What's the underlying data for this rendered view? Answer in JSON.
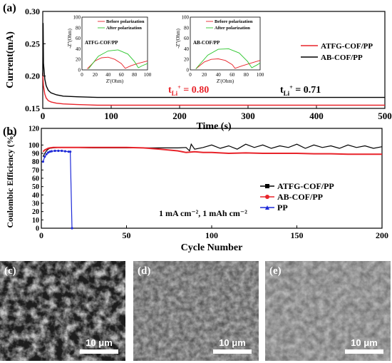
{
  "panels": {
    "a": {
      "label": "(a)",
      "ylabel": "Current(mA)",
      "xlabel": "Time (s)",
      "xticks": [
        "0",
        "100",
        "200",
        "300",
        "400",
        "500"
      ],
      "yticks": [
        "0.15",
        "0.20",
        "0.25",
        "0.30"
      ],
      "t_ATFG": "0.80",
      "t_AB": "0.71",
      "t_prefix": "t",
      "t_sub": "Li",
      "t_sup": "+",
      "legend": [
        {
          "name": "ATFG-COF/PP",
          "color": "#e8232a"
        },
        {
          "name": "AB-COF/PP",
          "color": "#000000"
        }
      ],
      "insets": [
        {
          "title": "ATFG-COF/PP",
          "ylabel": "-Z''(Ohm)",
          "xlabel": "Z'(Ohm)",
          "xticks": [
            "0",
            "20",
            "40",
            "60",
            "80",
            "100"
          ],
          "yticks": [
            "0",
            "20",
            "40",
            "60",
            "80",
            "100"
          ],
          "legend": [
            "Before polarization",
            "After polarization"
          ]
        },
        {
          "title": "AB-COF/PP",
          "ylabel": "-Z''(Ohm)",
          "xlabel": "Z'(Ohm)",
          "xticks": [
            "0",
            "20",
            "40",
            "60",
            "80",
            "100"
          ],
          "yticks": [
            "0",
            "20",
            "40",
            "60",
            "80",
            "100"
          ],
          "legend": [
            "Before polarization",
            "After polarization"
          ]
        }
      ]
    },
    "b": {
      "label": "(b)",
      "ylabel": "Coulombic Efficiency (%)",
      "xlabel": "Cycle Number",
      "xticks": [
        "0",
        "50",
        "100",
        "150",
        "200"
      ],
      "yticks": [
        "0",
        "10",
        "20",
        "30",
        "40",
        "50",
        "60",
        "70",
        "80",
        "90",
        "100",
        "120"
      ],
      "annotation": "1 mA cm⁻², 1 mAh cm⁻²",
      "legend": [
        {
          "name": "ATFG-COF/PP",
          "color": "#000000"
        },
        {
          "name": "AB-COF/PP",
          "color": "#e8232a"
        },
        {
          "name": "PP",
          "color": "#1f2bd8"
        }
      ]
    },
    "c": {
      "label": "(c)",
      "scale": "10 μm"
    },
    "d": {
      "label": "(d)",
      "scale": "10 μm"
    },
    "e": {
      "label": "(e)",
      "scale": "10 μm"
    }
  },
  "chart_data": [
    {
      "type": "line",
      "xlabel": "Time (s)",
      "ylabel": "Current(mA)",
      "xlim": [
        0,
        500
      ],
      "ylim": [
        0.15,
        0.3
      ],
      "series": [
        {
          "name": "ATFG-COF/PP",
          "color": "#e8232a",
          "x": [
            0,
            1,
            3,
            5,
            8,
            12,
            20,
            30,
            50,
            80,
            120,
            200,
            300,
            400,
            500
          ],
          "y": [
            0.205,
            0.185,
            0.172,
            0.166,
            0.162,
            0.16,
            0.158,
            0.157,
            0.156,
            0.155,
            0.155,
            0.155,
            0.155,
            0.155,
            0.155
          ]
        },
        {
          "name": "AB-COF/PP",
          "color": "#000000",
          "x": [
            0,
            0.5,
            1,
            3,
            5,
            8,
            12,
            20,
            30,
            50,
            80,
            120,
            200,
            300,
            400,
            500
          ],
          "y": [
            0.2,
            0.282,
            0.22,
            0.195,
            0.185,
            0.178,
            0.174,
            0.171,
            0.169,
            0.168,
            0.167,
            0.167,
            0.167,
            0.167,
            0.167,
            0.167
          ]
        }
      ],
      "insets": [
        {
          "title": "ATFG-COF/PP",
          "xlim": [
            0,
            100
          ],
          "ylim": [
            0,
            100
          ],
          "series": [
            {
              "name": "Before polarization",
              "color": "#e8232a",
              "x": [
                8,
                20,
                30,
                40,
                50,
                60,
                66,
                75,
                85,
                100
              ],
              "y": [
                2,
                17,
                23,
                24,
                20,
                12,
                3,
                8,
                12,
                17
              ]
            },
            {
              "name": "After polarization",
              "color": "#2bc52b",
              "x": [
                10,
                25,
                40,
                55,
                70,
                80,
                86,
                92,
                100
              ],
              "y": [
                2,
                26,
                36,
                38,
                30,
                16,
                4,
                8,
                12
              ]
            }
          ]
        },
        {
          "title": "AB-COF/PP",
          "xlim": [
            0,
            100
          ],
          "ylim": [
            0,
            100
          ],
          "series": [
            {
              "name": "Before polarization",
              "color": "#e8232a",
              "x": [
                8,
                20,
                30,
                40,
                50,
                60,
                64,
                75,
                90,
                100
              ],
              "y": [
                2,
                15,
                20,
                21,
                18,
                10,
                3,
                8,
                14,
                18
              ]
            },
            {
              "name": "After polarization",
              "color": "#2bc52b",
              "x": [
                8,
                25,
                40,
                55,
                70,
                82,
                88,
                95,
                100
              ],
              "y": [
                2,
                28,
                39,
                40,
                32,
                16,
                4,
                9,
                13
              ]
            }
          ]
        }
      ]
    },
    {
      "type": "line",
      "xlabel": "Cycle Number",
      "ylabel": "Coulombic Efficiency (%)",
      "xlim": [
        0,
        200
      ],
      "ylim": [
        0,
        120
      ],
      "series": [
        {
          "name": "ATFG-COF/PP",
          "color": "#000000",
          "x": [
            1,
            2,
            3,
            4,
            5,
            7,
            10,
            15,
            20,
            30,
            40,
            50,
            60,
            70,
            80,
            85,
            87,
            88,
            90,
            95,
            100,
            105,
            110,
            115,
            120,
            125,
            130,
            135,
            140,
            145,
            150,
            155,
            160,
            165,
            170,
            175,
            180,
            185,
            190,
            195,
            200
          ],
          "y": [
            86,
            90,
            93,
            95,
            96,
            96.5,
            97,
            97,
            97,
            96.5,
            96.5,
            96.5,
            96.5,
            96.5,
            96.5,
            97,
            93,
            101,
            95,
            97,
            100,
            96,
            99,
            95,
            101,
            97,
            100,
            96,
            99,
            97,
            101,
            96,
            100,
            97,
            99,
            96,
            100,
            97,
            99,
            96,
            98
          ]
        },
        {
          "name": "AB-COF/PP",
          "color": "#e8232a",
          "x": [
            1,
            2,
            3,
            4,
            5,
            7,
            10,
            20,
            30,
            40,
            50,
            60,
            70,
            80,
            85,
            90,
            95,
            100,
            110,
            120,
            130,
            140,
            150,
            160,
            170,
            180,
            190,
            200
          ],
          "y": [
            92,
            94,
            95,
            96,
            96.5,
            97,
            97,
            97,
            97,
            97,
            97,
            96.5,
            95,
            93,
            91,
            92,
            91,
            91,
            90,
            90.5,
            90,
            90,
            90,
            89.5,
            89.5,
            89,
            89,
            89
          ]
        },
        {
          "name": "PP",
          "color": "#1f2bd8",
          "x": [
            1,
            2,
            3,
            4,
            5,
            6,
            8,
            10,
            12,
            14,
            16,
            17,
            18
          ],
          "y": [
            80,
            86,
            89,
            91,
            92,
            92.5,
            93,
            93,
            93,
            92.5,
            92,
            92,
            0
          ]
        }
      ]
    }
  ]
}
